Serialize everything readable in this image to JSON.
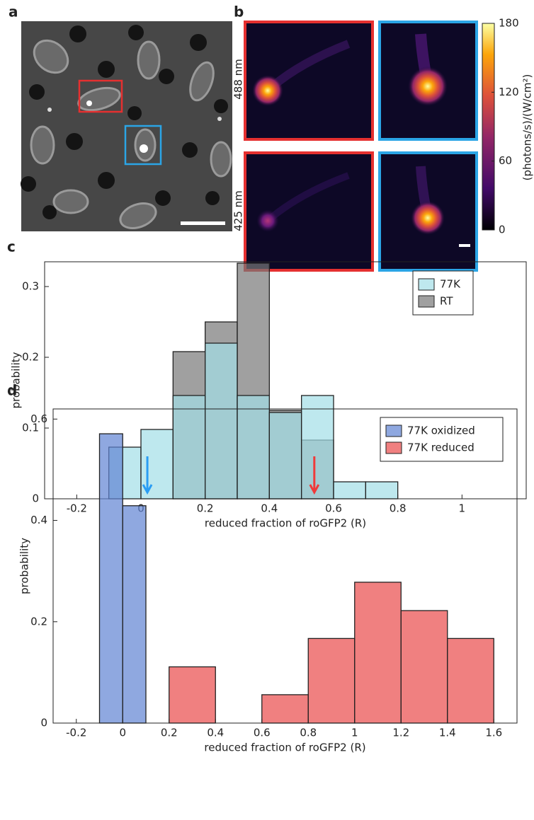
{
  "panel_labels": [
    "a",
    "b",
    "c",
    "d"
  ],
  "heatmaps": {
    "row_labels": [
      "488 nm",
      "425 nm"
    ],
    "colorbar": {
      "label": "(photons/s)/(W/cm²)",
      "lim": [
        0,
        180
      ],
      "ticks": [
        0,
        60,
        120,
        180
      ]
    }
  },
  "chart_data": [
    {
      "type": "histogram",
      "xlabel": "reduced fraction of roGFP2 (R)",
      "ylabel": "probability",
      "xlim": [
        -0.3,
        1.2
      ],
      "ylim": [
        0,
        0.335
      ],
      "xticks": [
        -0.2,
        0,
        0.2,
        0.4,
        0.6,
        0.8,
        1
      ],
      "yticks": [
        0,
        0.1,
        0.2,
        0.3
      ],
      "legend": "upper right",
      "series": [
        {
          "name": "77K",
          "color": "#a2dee7",
          "bins": [
            -0.1,
            0,
            0.1,
            0.2,
            0.3,
            0.4,
            0.5,
            0.6,
            0.7,
            0.8
          ],
          "values": [
            0.073,
            0.098,
            0.146,
            0.22,
            0.146,
            0.122,
            0.146,
            0.024,
            0.024
          ]
        },
        {
          "name": "RT",
          "color": "#777777",
          "bins": [
            -0.1,
            0,
            0.1,
            0.2,
            0.3,
            0.4,
            0.5,
            0.6,
            0.7,
            0.8
          ],
          "values": [
            0,
            0,
            0.208,
            0.25,
            0.333,
            0.125,
            0.083,
            0,
            0
          ]
        }
      ],
      "arrows": [
        {
          "x": 0.02,
          "color": "#2a9df4"
        },
        {
          "x": 0.54,
          "color": "#f03a3a"
        }
      ]
    },
    {
      "type": "histogram",
      "xlabel": "reduced fraction of roGFP2 (R)",
      "ylabel": "probability",
      "xlim": [
        -0.3,
        1.7
      ],
      "ylim": [
        0,
        0.62
      ],
      "xticks": [
        -0.2,
        0,
        0.2,
        0.4,
        0.6,
        0.8,
        1,
        1.2,
        1.4,
        1.6
      ],
      "yticks": [
        0,
        0.2,
        0.4,
        0.6
      ],
      "legend": "upper right",
      "series": [
        {
          "name": "77K oxidized",
          "color": "#5f83d3",
          "bins": [
            -0.1,
            0,
            0.1
          ],
          "values": [
            0.571,
            0.429
          ]
        },
        {
          "name": "77K reduced",
          "color": "#ea4a4a",
          "bins": [
            0.2,
            0.4,
            0.6,
            0.8,
            1,
            1.2,
            1.4,
            1.6
          ],
          "values": [
            0.111,
            0,
            0.056,
            0.167,
            0.278,
            0.222,
            0.167
          ]
        }
      ]
    }
  ]
}
